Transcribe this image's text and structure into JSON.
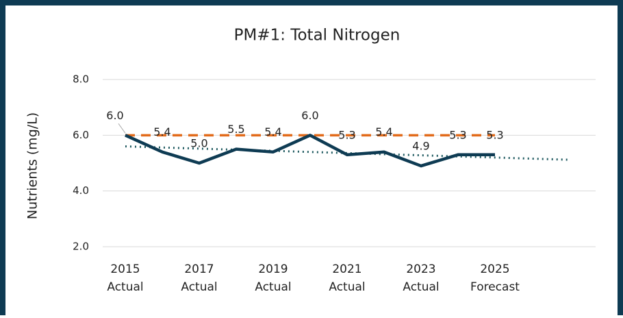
{
  "chart_data": {
    "type": "line",
    "title": "PM#1: Total Nitrogen",
    "y_label": "Nutrients (mg/L)",
    "categories": [
      [
        "2015",
        "Actual"
      ],
      null,
      [
        "2017",
        "Actual"
      ],
      null,
      [
        "2019",
        "Actual"
      ],
      null,
      [
        "2021",
        "Actual"
      ],
      null,
      [
        "2023",
        "Actual"
      ],
      null,
      [
        "2025",
        "Forecast"
      ],
      null,
      null
    ],
    "series": [
      {
        "color": "#0e3b53",
        "style": "solid",
        "values": [
          6.0,
          5.4,
          5.0,
          5.5,
          5.4,
          6.0,
          5.3,
          5.4,
          4.9,
          5.3,
          5.3,
          null,
          null
        ],
        "value_labels": [
          "6.0",
          "5.4",
          "5.0",
          "5.5",
          "5.4",
          "6.0",
          "5.3",
          "5.4",
          "4.9",
          "5.3",
          "5.3",
          null,
          null
        ]
      },
      {
        "color": "#e26b1b",
        "style": "dashed",
        "values": [
          6.0,
          6.0,
          6.0,
          6.0,
          6.0,
          6.0,
          6.0,
          6.0,
          6.0,
          6.0,
          6.0,
          null,
          null
        ]
      },
      {
        "color": "#1f5a60",
        "style": "dotted",
        "values": [
          5.6,
          5.56,
          5.52,
          5.48,
          5.44,
          5.4,
          5.36,
          5.32,
          5.28,
          5.24,
          5.2,
          5.16,
          5.12
        ]
      }
    ],
    "ylim": [
      2,
      8
    ],
    "yticks": [
      {
        "value": 2,
        "label": "2.0"
      },
      {
        "value": 4,
        "label": "4.0"
      },
      {
        "value": 6,
        "label": "6.0"
      },
      {
        "value": 8,
        "label": "8.0"
      }
    ],
    "grid": true
  }
}
